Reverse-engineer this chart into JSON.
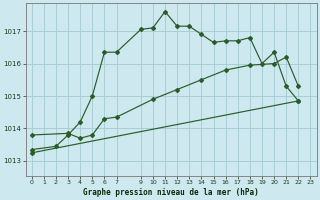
{
  "background_color": "#cde8ee",
  "grid_color": "#a8ced6",
  "line_color": "#2a5c2a",
  "title": "Graphe pression niveau de la mer (hPa)",
  "xlim": [
    -0.5,
    23.5
  ],
  "ylim": [
    1012.55,
    1017.85
  ],
  "yticks": [
    1013,
    1014,
    1015,
    1016,
    1017
  ],
  "xticks": [
    0,
    1,
    2,
    3,
    4,
    5,
    6,
    7,
    9,
    10,
    11,
    12,
    13,
    14,
    15,
    16,
    17,
    18,
    19,
    20,
    21,
    22,
    23
  ],
  "series1_x": [
    0,
    2,
    3,
    4,
    5,
    6,
    7,
    9,
    10,
    11,
    12,
    13,
    14,
    15,
    16,
    17,
    18,
    19,
    20,
    21,
    22
  ],
  "series1_y": [
    1013.35,
    1013.45,
    1013.8,
    1014.2,
    1015.0,
    1016.35,
    1016.35,
    1017.05,
    1017.1,
    1017.6,
    1017.15,
    1017.15,
    1016.9,
    1016.65,
    1016.7,
    1016.7,
    1016.8,
    1016.0,
    1016.35,
    1015.3,
    1014.85
  ],
  "series2_x": [
    0,
    3,
    4,
    5,
    6,
    7,
    10,
    12,
    14,
    16,
    18,
    20,
    21,
    22
  ],
  "series2_y": [
    1013.8,
    1013.85,
    1013.7,
    1013.8,
    1014.3,
    1014.35,
    1014.9,
    1015.2,
    1015.5,
    1015.8,
    1015.95,
    1016.0,
    1016.2,
    1015.3
  ],
  "series3_x": [
    0,
    22
  ],
  "series3_y": [
    1013.25,
    1014.85
  ]
}
